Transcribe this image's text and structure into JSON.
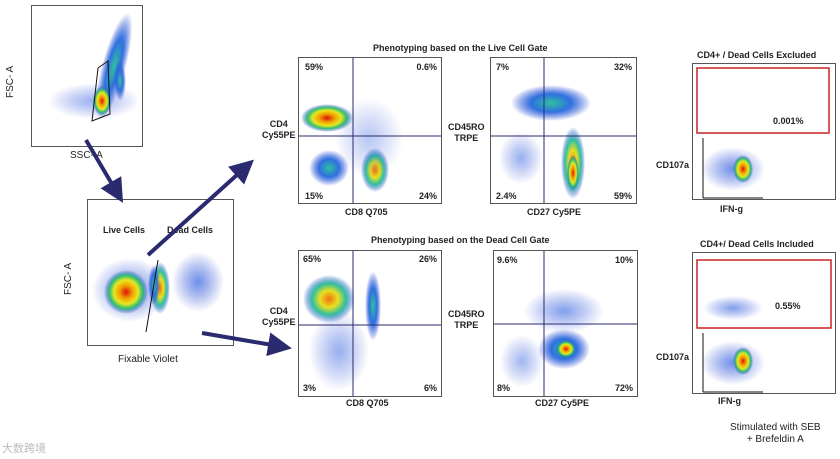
{
  "overview": {
    "y_axis": "FSC- A",
    "x_axis": "SSC- A"
  },
  "viability": {
    "y_axis": "FSC- A",
    "x_axis": "Fixable  Violet",
    "live_label": "Live Cells",
    "dead_label": "Dead Cells"
  },
  "live_section": {
    "title": "Phenotyping based on the Live Cell Gate",
    "plot1": {
      "y_axis_line1": "CD4",
      "y_axis_line2": "Cy55PE",
      "x_axis": "CD8 Q705",
      "q_tl": "59%",
      "q_tr": "0.6%",
      "q_bl": "15%",
      "q_br": "24%"
    },
    "plot2": {
      "y_axis_line1": "CD45RO",
      "y_axis_line2": "TRPE",
      "x_axis": "CD27 Cy5PE",
      "q_tl": "7%",
      "q_tr": "32%",
      "q_bl": "2.4%",
      "q_br": "59%"
    }
  },
  "dead_section": {
    "title": "Phenotyping based on the Dead Cell Gate",
    "plot1": {
      "y_axis_line1": "CD4",
      "y_axis_line2": "Cy55PE",
      "x_axis": "CD8 Q705",
      "q_tl": "65%",
      "q_tr": "26%",
      "q_bl": "3%",
      "q_br": "6%"
    },
    "plot2": {
      "y_axis_line1": "CD45RO",
      "y_axis_line2": "TRPE",
      "x_axis": "CD27 Cy5PE",
      "q_tl": "9.6%",
      "q_tr": "10%",
      "q_bl": "8%",
      "q_br": "72%"
    }
  },
  "cytokine_excluded": {
    "title": "CD4+ / Dead Cells Excluded",
    "gate_value": "0.001%",
    "y_axis": "CD107a",
    "x_axis": "IFN-g"
  },
  "cytokine_included": {
    "title": "CD4+/ Dead Cells Included",
    "gate_value": "0.55%",
    "y_axis": "CD107a",
    "x_axis": "IFN-g"
  },
  "footnote": {
    "line1": "Stimulated with  SEB",
    "line2": "+  Brefeldin  A"
  },
  "watermark": "大数跨境",
  "colors": {
    "arrow": "#2a2a6e",
    "gate_red": "#cc2222",
    "quad_line": "#2a2a6e",
    "dot_blue": "#1f3fcf"
  }
}
